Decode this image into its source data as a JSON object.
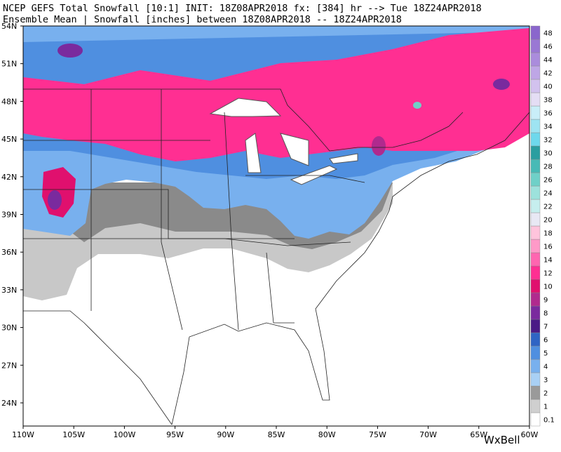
{
  "header": {
    "title": "NCEP GEFS Total Snowfall [10:1] INIT: 18Z08APR2018 fx: [384] hr --> Tue 18Z24APR2018",
    "subtitle": "Ensemble Mean | Snowfall [inches] between 18Z08APR2018 -- 18Z24APR2018"
  },
  "map": {
    "lon_ticks": [
      {
        "value": -110,
        "label": "110W"
      },
      {
        "value": -105,
        "label": "105W"
      },
      {
        "value": -100,
        "label": "100W"
      },
      {
        "value": -95,
        "label": "95W"
      },
      {
        "value": -90,
        "label": "90W"
      },
      {
        "value": -85,
        "label": "85W"
      },
      {
        "value": -80,
        "label": "80W"
      },
      {
        "value": -75,
        "label": "75W"
      },
      {
        "value": -70,
        "label": "70W"
      },
      {
        "value": -65,
        "label": "65W"
      },
      {
        "value": -60,
        "label": "60W"
      }
    ],
    "lat_ticks": [
      {
        "value": 24,
        "label": "24N"
      },
      {
        "value": 27,
        "label": "27N"
      },
      {
        "value": 30,
        "label": "30N"
      },
      {
        "value": 33,
        "label": "33N"
      },
      {
        "value": 36,
        "label": "36N"
      },
      {
        "value": 39,
        "label": "39N"
      },
      {
        "value": 42,
        "label": "42N"
      },
      {
        "value": 45,
        "label": "45N"
      },
      {
        "value": 48,
        "label": "48N"
      },
      {
        "value": 51,
        "label": "51N"
      },
      {
        "value": 54,
        "label": "54N"
      }
    ]
  },
  "colorbar": {
    "levels": [
      0.1,
      1,
      2,
      3,
      4,
      5,
      6,
      7,
      8,
      9,
      10,
      12,
      14,
      16,
      18,
      20,
      22,
      24,
      26,
      28,
      30,
      32,
      34,
      36,
      38,
      40,
      42,
      44,
      46,
      48
    ],
    "colors": [
      "#ffffff",
      "#cfcfcf",
      "#9a9a9a",
      "#a9d0f5",
      "#78b0ee",
      "#4f8fe0",
      "#2f64c4",
      "#4a1a86",
      "#7a2a9e",
      "#b02a8e",
      "#e0106e",
      "#ff2f92",
      "#ff66b0",
      "#ff9ac8",
      "#ffc4dc",
      "#e8e8f4",
      "#c6eeee",
      "#9de2dc",
      "#6fd0c8",
      "#48bab6",
      "#2a9ea0",
      "#6ed8ec",
      "#9ee4f2",
      "#c9eef8",
      "#e4ddf4",
      "#d2c2ee",
      "#bea6e6",
      "#aa8cdc",
      "#9a78d4",
      "#8a66cc"
    ]
  },
  "watermark": "WxBell"
}
